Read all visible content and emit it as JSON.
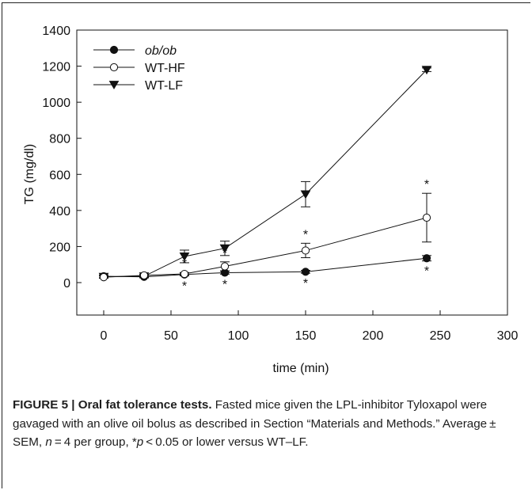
{
  "chart_data": {
    "type": "line",
    "title": "",
    "xlabel": "time (min)",
    "ylabel": "TG (mg/dl)",
    "xlim": [
      -20,
      300
    ],
    "ylim": [
      -180,
      1400
    ],
    "xticks": [
      0,
      50,
      100,
      150,
      200,
      250,
      300
    ],
    "yticks": [
      0,
      200,
      400,
      600,
      800,
      1000,
      1200,
      1400
    ],
    "legend_position": "top-left",
    "series": [
      {
        "name": "ob/ob",
        "name_italic": true,
        "marker": "filled-circle",
        "x": [
          0,
          30,
          60,
          90,
          150,
          240
        ],
        "y": [
          35,
          32,
          45,
          55,
          60,
          135
        ],
        "err": [
          8,
          6,
          8,
          8,
          8,
          15
        ],
        "significant": [
          false,
          false,
          true,
          true,
          true,
          true
        ]
      },
      {
        "name": "WT-HF",
        "name_italic": false,
        "marker": "open-circle",
        "x": [
          0,
          30,
          60,
          90,
          150,
          240
        ],
        "y": [
          30,
          40,
          48,
          90,
          178,
          360
        ],
        "err": [
          6,
          6,
          8,
          25,
          40,
          135
        ],
        "significant": [
          false,
          false,
          true,
          true,
          true,
          true
        ]
      },
      {
        "name": "WT-LF",
        "name_italic": false,
        "marker": "filled-triangle-down",
        "x": [
          0,
          30,
          60,
          90,
          150,
          240
        ],
        "y": [
          32,
          35,
          145,
          190,
          490,
          1180
        ],
        "err": [
          6,
          6,
          35,
          40,
          70,
          10
        ],
        "significant": [
          false,
          false,
          false,
          false,
          false,
          false
        ]
      }
    ],
    "significance_marker": "*"
  },
  "caption": {
    "figure_label": "FIGURE 5 | Oral fat tolerance tests.",
    "text_part1": " Fasted mice given the LPL-inhibitor Tyloxapol were gavaged with an olive oil bolus as described in Section “Materials and Methods.” Average ± SEM, ",
    "n_symbol": "n",
    "text_part2": " = 4 per group, *",
    "p_symbol": "p",
    "text_part3": " < 0.05 or lower versus WT–LF."
  }
}
